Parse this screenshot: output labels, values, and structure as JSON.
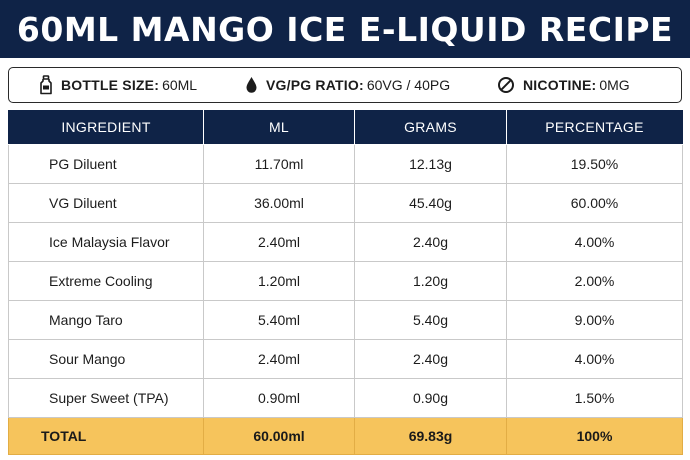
{
  "title": "60ML MANGO ICE E-LIQUID RECIPE",
  "info": {
    "bottle": {
      "icon": "bottle-icon",
      "label": "BOTTLE SIZE:",
      "value": "60ML"
    },
    "ratio": {
      "icon": "droplet-icon",
      "label": "VG/PG RATIO:",
      "value": "60VG / 40PG"
    },
    "nicotine": {
      "icon": "no-symbol-icon",
      "label": "NICOTINE:",
      "value": "0MG"
    }
  },
  "table": {
    "headers": [
      "INGREDIENT",
      "ML",
      "GRAMS",
      "PERCENTAGE"
    ],
    "rows": [
      {
        "ingredient": "PG Diluent",
        "ml": "11.70ml",
        "grams": "12.13g",
        "percentage": "19.50%"
      },
      {
        "ingredient": "VG Diluent",
        "ml": "36.00ml",
        "grams": "45.40g",
        "percentage": "60.00%"
      },
      {
        "ingredient": "Ice Malaysia Flavor",
        "ml": "2.40ml",
        "grams": "2.40g",
        "percentage": "4.00%"
      },
      {
        "ingredient": "Extreme Cooling",
        "ml": "1.20ml",
        "grams": "1.20g",
        "percentage": "2.00%"
      },
      {
        "ingredient": "Mango Taro",
        "ml": "5.40ml",
        "grams": "5.40g",
        "percentage": "9.00%"
      },
      {
        "ingredient": "Sour Mango",
        "ml": "2.40ml",
        "grams": "2.40g",
        "percentage": "4.00%"
      },
      {
        "ingredient": "Super Sweet (TPA)",
        "ml": "0.90ml",
        "grams": "0.90g",
        "percentage": "1.50%"
      }
    ],
    "total": {
      "ingredient": "TOTAL",
      "ml": "60.00ml",
      "grams": "69.83g",
      "percentage": "100%"
    }
  },
  "colors": {
    "header_navy": "#0f2347",
    "total_row": "#f6c45c",
    "border": "#c9c9c9"
  }
}
